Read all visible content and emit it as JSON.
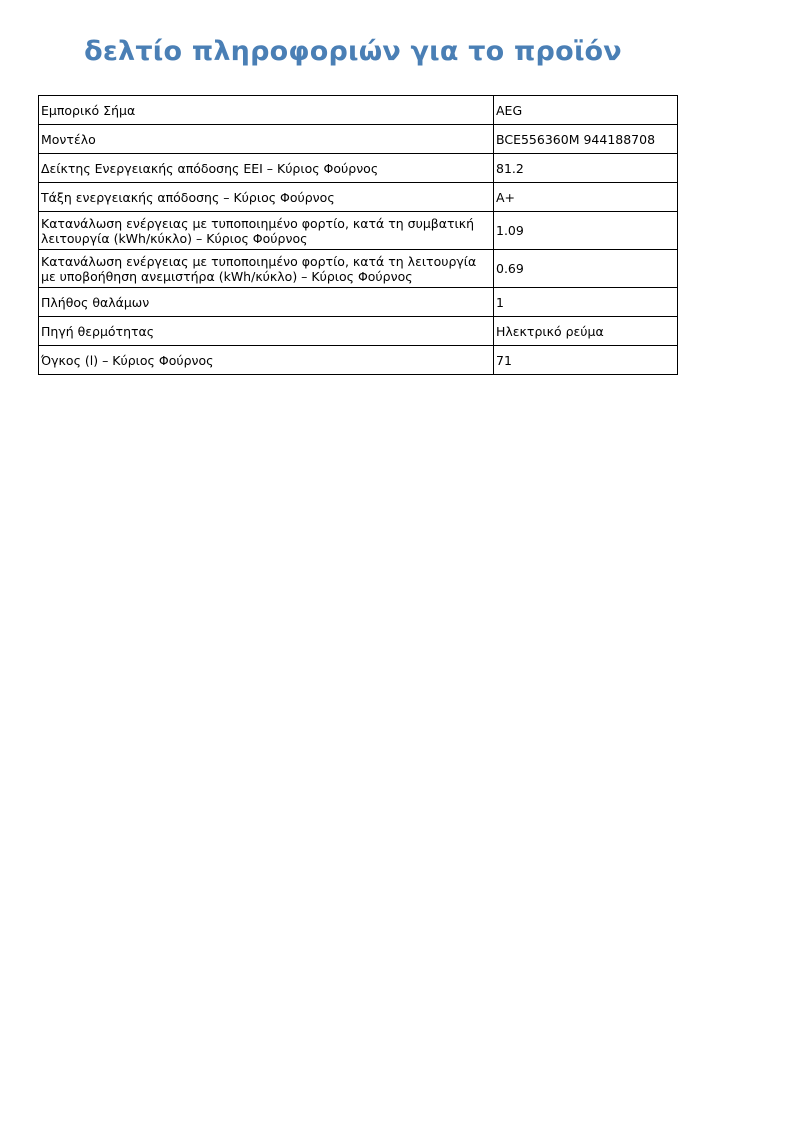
{
  "title": "δελτίο πληροφοριών για το προϊόν",
  "rows": [
    {
      "label": "Εμπορικό Σήμα",
      "value": "AEG"
    },
    {
      "label": "Μοντέλο",
      "value": "BCE556360M 944188708"
    },
    {
      "label": "Δείκτης Ενεργειακής απόδοσης EEI – Κύριος Φούρνος",
      "value": "81.2"
    },
    {
      "label": "Τάξη ενεργειακής απόδοσης – Κύριος Φούρνος",
      "value": "A+"
    },
    {
      "label": "Κατανάλωση ενέργειας με τυποποιημένο φορτίο, κατά τη συμβατική λειτουργία (kWh/κύκλο) – Κύριος Φούρνος",
      "value": "1.09"
    },
    {
      "label": "Κατανάλωση ενέργειας με τυποποιημένο φορτίο, κατά τη λειτουργία με υποβοήθηση ανεμιστήρα (kWh/κύκλο) – Κύριος Φούρνος",
      "value": "0.69"
    },
    {
      "label": "Πλήθος θαλάμων",
      "value": "1"
    },
    {
      "label": "Πηγή θερμότητας",
      "value": "Ηλεκτρικό ρεύμα"
    },
    {
      "label": "Όγκος (l) – Κύριος Φούρνος",
      "value": "71"
    }
  ]
}
